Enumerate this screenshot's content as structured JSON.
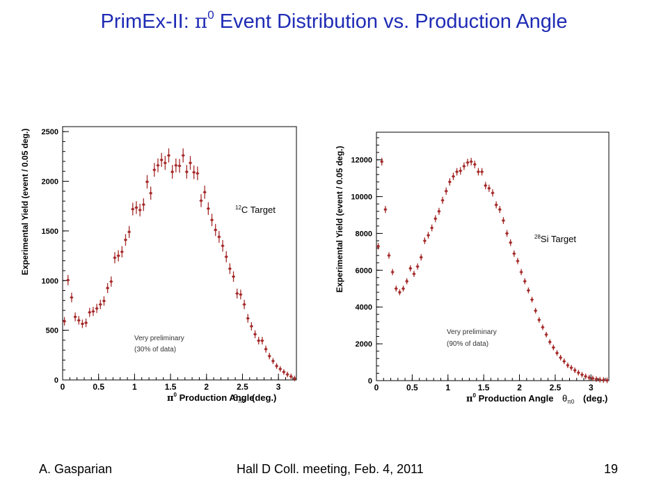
{
  "slide": {
    "title_pre": "PrimEx-II: ",
    "title_pi": "π",
    "title_sup": "0",
    "title_post": " Event Distribution vs. Production Angle",
    "footer_left": "A. Gasparian",
    "footer_center": "Hall D Coll. meeting, Feb. 4, 2011",
    "page_number": "19"
  },
  "colors": {
    "title": "#1f2bb5",
    "marker": "#a52a2a"
  },
  "chart_data": [
    {
      "type": "scatter",
      "target_sup": "12",
      "target_label": "C Target",
      "note_line1": "Very preliminary",
      "note_line2": "(30% of data)",
      "ylabel": "Experimental Yield   (event / 0.05 deg.)",
      "xlabel_sup": "0",
      "xlabel": " Production Angle",
      "xlabel_theta_sub": "π0",
      "xlabel_unit": "(deg.)",
      "xlim": [
        0,
        3.25
      ],
      "ylim": [
        0,
        2550
      ],
      "x_ticks": [
        "0",
        "0.5",
        "1",
        "1.5",
        "2",
        "2.5",
        "3"
      ],
      "y_ticks": [
        "0",
        "500",
        "1000",
        "1500",
        "2000",
        "2500"
      ],
      "x": [
        0.025,
        0.075,
        0.125,
        0.175,
        0.225,
        0.275,
        0.325,
        0.375,
        0.425,
        0.475,
        0.525,
        0.575,
        0.625,
        0.675,
        0.725,
        0.775,
        0.825,
        0.875,
        0.925,
        0.975,
        1.025,
        1.075,
        1.125,
        1.175,
        1.225,
        1.275,
        1.325,
        1.375,
        1.425,
        1.475,
        1.525,
        1.575,
        1.625,
        1.675,
        1.725,
        1.775,
        1.825,
        1.875,
        1.925,
        1.975,
        2.025,
        2.075,
        2.125,
        2.175,
        2.225,
        2.275,
        2.325,
        2.375,
        2.425,
        2.475,
        2.525,
        2.575,
        2.625,
        2.675,
        2.725,
        2.775,
        2.825,
        2.875,
        2.925,
        2.975,
        3.025,
        3.075,
        3.125,
        3.175,
        3.225
      ],
      "y": [
        590,
        1005,
        830,
        635,
        600,
        565,
        575,
        680,
        690,
        720,
        760,
        795,
        925,
        990,
        1230,
        1250,
        1290,
        1410,
        1490,
        1720,
        1735,
        1710,
        1765,
        1995,
        1880,
        2115,
        2160,
        2215,
        2185,
        2260,
        2095,
        2160,
        2155,
        2260,
        2095,
        2185,
        2090,
        2080,
        1805,
        1890,
        1725,
        1610,
        1510,
        1440,
        1350,
        1240,
        1120,
        1040,
        870,
        860,
        760,
        620,
        540,
        460,
        395,
        395,
        310,
        240,
        190,
        140,
        110,
        80,
        55,
        35,
        15
      ]
    },
    {
      "type": "scatter",
      "target_sup": "28",
      "target_label": "Si Target",
      "note_line1": "Very preliminary",
      "note_line2": "(90% of data)",
      "ylabel": "Experimental Yield   (event / 0.05  deg.)",
      "xlabel_sup": "0",
      "xlabel": " Production Angle",
      "xlabel_theta_sub": "π0",
      "xlabel_unit": "(deg.)",
      "xlim": [
        0,
        3.25
      ],
      "ylim": [
        0,
        13500
      ],
      "x_ticks": [
        "0",
        "0.5",
        "1",
        "1.5",
        "2",
        "2.5",
        "3"
      ],
      "y_ticks": [
        "0",
        "2000",
        "4000",
        "6000",
        "8000",
        "10000",
        "12000"
      ],
      "x": [
        0.025,
        0.075,
        0.125,
        0.175,
        0.225,
        0.275,
        0.325,
        0.375,
        0.425,
        0.475,
        0.525,
        0.575,
        0.625,
        0.675,
        0.725,
        0.775,
        0.825,
        0.875,
        0.925,
        0.975,
        1.025,
        1.075,
        1.125,
        1.175,
        1.225,
        1.275,
        1.325,
        1.375,
        1.425,
        1.475,
        1.525,
        1.575,
        1.625,
        1.675,
        1.725,
        1.775,
        1.825,
        1.875,
        1.925,
        1.975,
        2.025,
        2.075,
        2.125,
        2.175,
        2.225,
        2.275,
        2.325,
        2.375,
        2.425,
        2.475,
        2.525,
        2.575,
        2.625,
        2.675,
        2.725,
        2.775,
        2.825,
        2.875,
        2.925,
        2.975,
        3.025,
        3.075,
        3.125,
        3.175,
        3.225
      ],
      "y": [
        7300,
        11900,
        9300,
        6800,
        5900,
        5000,
        4800,
        5000,
        5400,
        6100,
        5800,
        6200,
        6700,
        7600,
        7900,
        8300,
        8800,
        9200,
        9800,
        10300,
        10800,
        11100,
        11350,
        11400,
        11650,
        11850,
        11900,
        11750,
        11350,
        11350,
        10600,
        10450,
        10200,
        9550,
        9300,
        8700,
        8000,
        7500,
        6900,
        6500,
        5900,
        5400,
        4900,
        4400,
        3800,
        3300,
        2900,
        2500,
        2100,
        1800,
        1500,
        1250,
        1050,
        830,
        700,
        560,
        430,
        320,
        230,
        160,
        120,
        80,
        50,
        30,
        15
      ]
    }
  ]
}
